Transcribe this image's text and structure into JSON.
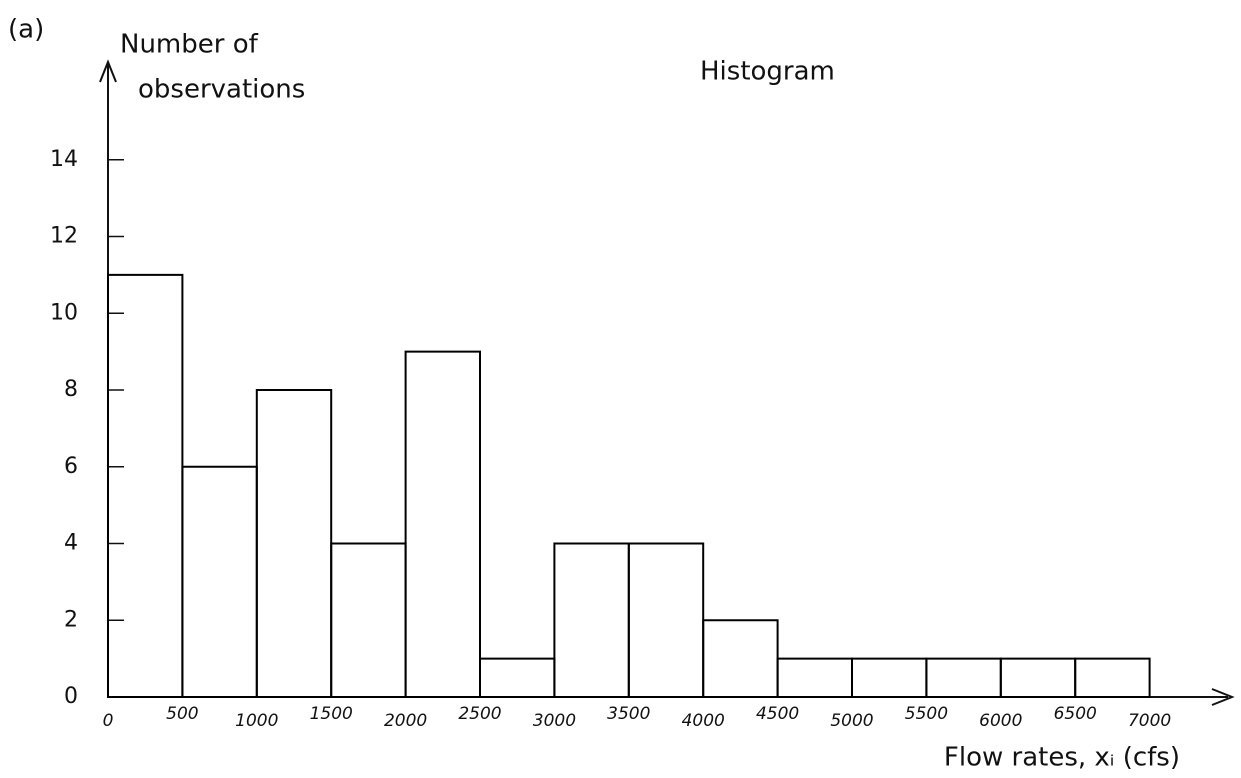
{
  "chart_data": {
    "type": "histogram",
    "annotation": "(a)",
    "title": "Histogram",
    "ylabel": [
      "Number of",
      "observations"
    ],
    "xlabel": "Flow rates, xᵢ (cfs)",
    "bins": [
      0,
      500,
      1000,
      1500,
      2000,
      2500,
      3000,
      3500,
      4000,
      4500,
      5000,
      5500,
      6000,
      6500,
      7000
    ],
    "counts": [
      11,
      6,
      8,
      4,
      9,
      1,
      4,
      4,
      2,
      1,
      1,
      1,
      1,
      1
    ],
    "color": "#000000",
    "xlim": [
      0,
      7500
    ],
    "xticks": [
      0,
      500,
      1000,
      1500,
      2000,
      2500,
      3000,
      3500,
      4000,
      4500,
      5000,
      5500,
      6000,
      6500,
      7000
    ],
    "ylim": [
      0,
      16
    ],
    "yticks": [
      0,
      2,
      4,
      6,
      8,
      10,
      12,
      14
    ],
    "grid": false
  }
}
